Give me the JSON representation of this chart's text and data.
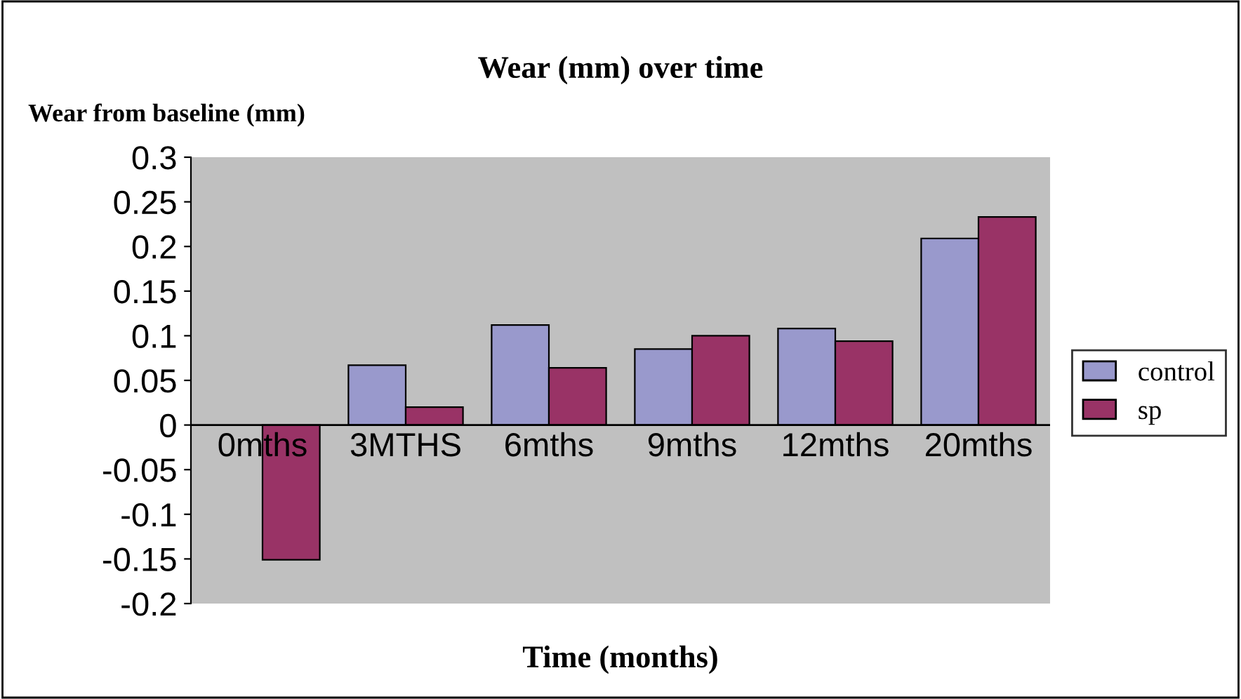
{
  "chart_data": {
    "type": "bar",
    "title": "Wear (mm) over time",
    "ylabel": "Wear from baseline (mm)",
    "xlabel": "Time (months)",
    "categories": [
      "0mths",
      "3MTHS",
      "6mths",
      "9mths",
      "12mths",
      "20mths"
    ],
    "series": [
      {
        "name": "control",
        "color": "#9999cc",
        "values": [
          null,
          0.067,
          0.112,
          0.085,
          0.108,
          0.209
        ]
      },
      {
        "name": "sp",
        "color": "#993366",
        "values": [
          -0.151,
          0.02,
          0.064,
          0.1,
          0.094,
          0.233
        ]
      }
    ],
    "ylim": [
      -0.2,
      0.3
    ],
    "yticks": [
      -0.2,
      -0.15,
      -0.1,
      -0.05,
      0,
      0.05,
      0.1,
      0.15,
      0.2,
      0.25,
      0.3
    ],
    "grid": false,
    "legend": "right"
  }
}
